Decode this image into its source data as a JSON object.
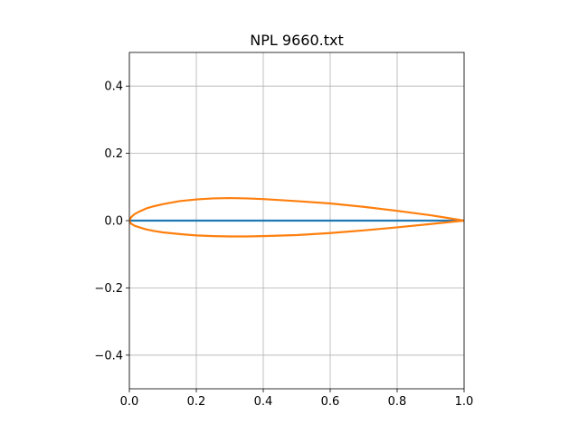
{
  "chart_data": {
    "type": "line",
    "title": "NPL 9660.txt",
    "xlabel": "",
    "ylabel": "",
    "xlim": [
      0.0,
      1.0
    ],
    "ylim": [
      -0.5,
      0.5
    ],
    "grid": true,
    "x_ticks": [
      0.0,
      0.2,
      0.4,
      0.6,
      0.8,
      1.0
    ],
    "x_tick_labels": [
      "0.0",
      "0.2",
      "0.4",
      "0.6",
      "0.8",
      "1.0"
    ],
    "y_ticks": [
      -0.4,
      -0.2,
      0.0,
      0.2,
      0.4
    ],
    "y_tick_labels": [
      "−0.4",
      "−0.2",
      "0.0",
      "0.2",
      "0.4"
    ],
    "series": [
      {
        "color": "#1f77b4",
        "x": [
          0.0,
          1.0
        ],
        "y": [
          0.0,
          0.0
        ]
      },
      {
        "color": "#ff7f0e",
        "x": [
          1.0,
          0.95,
          0.9,
          0.8,
          0.7,
          0.6,
          0.5,
          0.4,
          0.35,
          0.3,
          0.25,
          0.2,
          0.15,
          0.1,
          0.07,
          0.05,
          0.03,
          0.015,
          0.005,
          0.0,
          0.005,
          0.015,
          0.03,
          0.05,
          0.075,
          0.1,
          0.15,
          0.2,
          0.25,
          0.3,
          0.35,
          0.4,
          0.5,
          0.6,
          0.7,
          0.8,
          0.9,
          0.95,
          1.0
        ],
        "y": [
          0.0,
          0.008,
          0.016,
          0.029,
          0.041,
          0.051,
          0.058,
          0.064,
          0.066,
          0.067,
          0.066,
          0.063,
          0.058,
          0.049,
          0.042,
          0.036,
          0.027,
          0.019,
          0.01,
          0.0,
          -0.009,
          -0.015,
          -0.02,
          -0.026,
          -0.031,
          -0.035,
          -0.04,
          -0.044,
          -0.046,
          -0.047,
          -0.047,
          -0.046,
          -0.043,
          -0.037,
          -0.029,
          -0.02,
          -0.01,
          -0.005,
          0.0
        ]
      }
    ]
  }
}
